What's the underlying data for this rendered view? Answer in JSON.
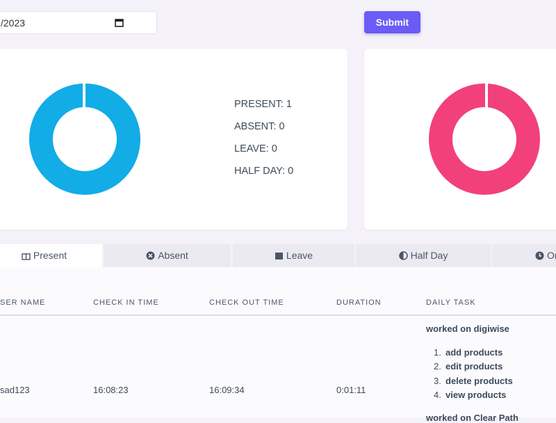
{
  "filter": {
    "date_value": "/2023",
    "submit": "Submit"
  },
  "summary": {
    "items": [
      "PRESENT: 1",
      "ABSENT: 0",
      "LEAVE: 0",
      "HALF DAY: 0"
    ]
  },
  "tabs": [
    "Present",
    "Absent",
    "Leave",
    "Half Day",
    "On"
  ],
  "table": {
    "headers": [
      "SER NAME",
      "CHECK IN TIME",
      "CHECK OUT TIME",
      "DURATION",
      "DAILY TASK"
    ],
    "rows": [
      [
        "sad123",
        "16:08:23",
        "16:09:34",
        "0:01:11"
      ]
    ],
    "tasks": [
      {
        "title": "worked on digiwise",
        "items": [
          "add products",
          "edit products",
          "delete products",
          "view products"
        ]
      },
      {
        "title": "worked on Clear Path"
      }
    ]
  }
}
